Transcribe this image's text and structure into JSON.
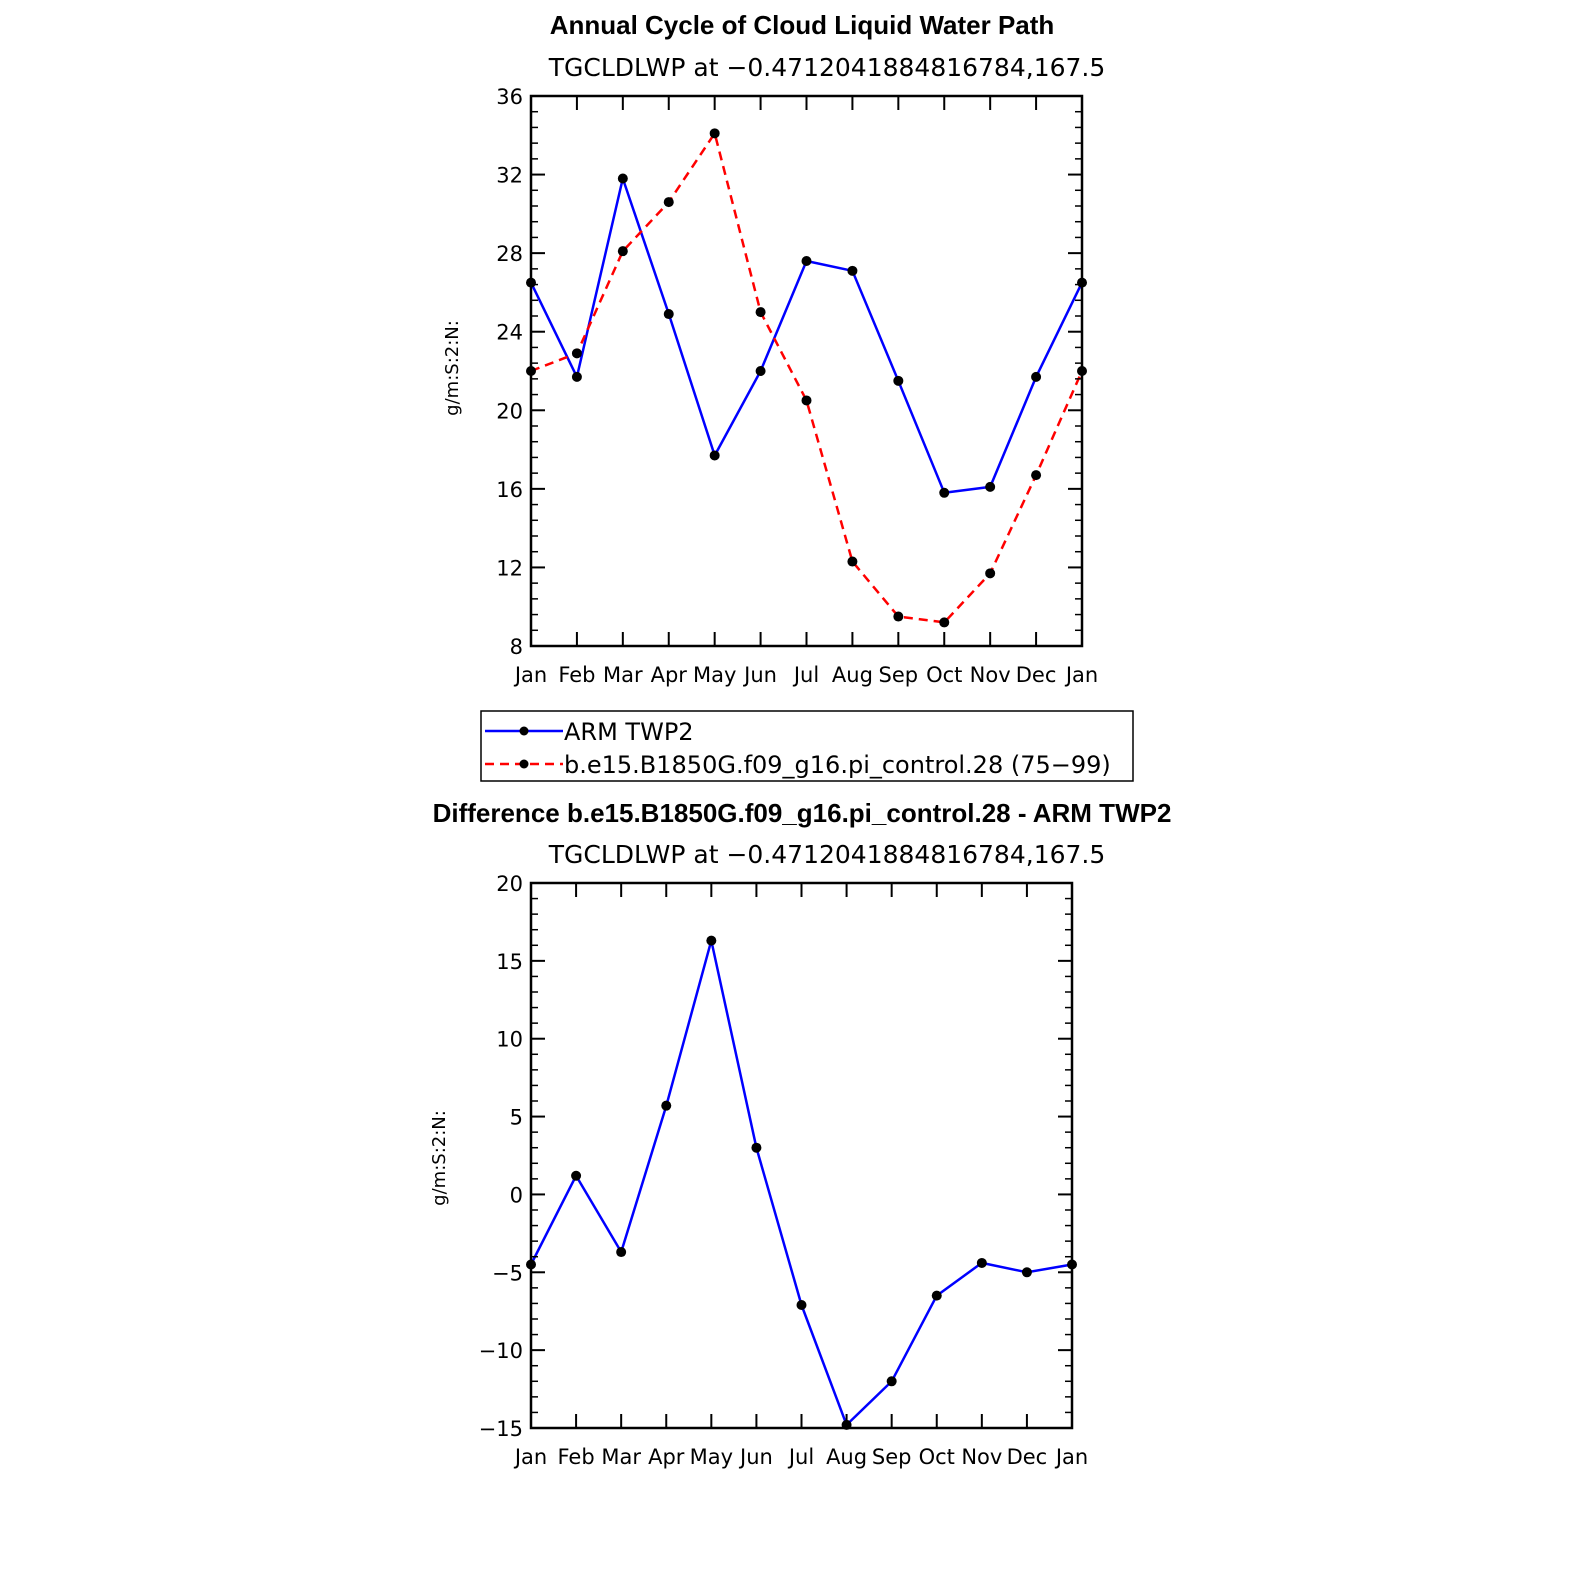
{
  "colors": {
    "series_a": "#0000ff",
    "series_b": "#ff0000",
    "marker": "#000000",
    "axis": "#000000"
  },
  "chart_data": [
    {
      "type": "line",
      "title": "Annual Cycle of Cloud Liquid Water Path",
      "subtitle": "TGCLDLWP at −0.4712041884816784,167.5",
      "xlabel": "",
      "ylabel": "g/m:S:2:N:",
      "categories": [
        "Jan",
        "Feb",
        "Mar",
        "Apr",
        "May",
        "Jun",
        "Jul",
        "Aug",
        "Sep",
        "Oct",
        "Nov",
        "Dec",
        "Jan"
      ],
      "ylim": [
        8,
        36
      ],
      "yticks": [
        "8",
        "12",
        "16",
        "20",
        "24",
        "28",
        "32",
        "36"
      ],
      "ytick_values": [
        8,
        12,
        16,
        20,
        24,
        28,
        32,
        36
      ],
      "series": [
        {
          "name": "ARM TWP2",
          "style": "solid",
          "color": "#0000ff",
          "values": [
            26.5,
            21.7,
            31.8,
            24.9,
            17.7,
            22.0,
            27.6,
            27.1,
            21.5,
            15.8,
            16.1,
            21.7,
            26.5
          ]
        },
        {
          "name": "b.e15.B1850G.f09_g16.pi_control.28 (75−99)",
          "style": "dashed",
          "color": "#ff0000",
          "values": [
            22.0,
            22.9,
            28.1,
            30.6,
            34.1,
            25.0,
            20.5,
            12.3,
            9.5,
            9.2,
            11.7,
            16.7,
            22.0
          ]
        }
      ],
      "legend": {
        "placement": "below-plot",
        "entries": [
          "ARM TWP2",
          "b.e15.B1850G.f09_g16.pi_control.28 (75−99)"
        ]
      }
    },
    {
      "type": "line",
      "title": "Difference b.e15.B1850G.f09_g16.pi_control.28 - ARM TWP2",
      "subtitle": "TGCLDLWP at −0.4712041884816784,167.5",
      "xlabel": "",
      "ylabel": "g/m:S:2:N:",
      "categories": [
        "Jan",
        "Feb",
        "Mar",
        "Apr",
        "May",
        "Jun",
        "Jul",
        "Aug",
        "Sep",
        "Oct",
        "Nov",
        "Dec",
        "Jan"
      ],
      "ylim": [
        -15,
        20
      ],
      "yticks": [
        "−15",
        "−10",
        "−5",
        "0",
        "5",
        "10",
        "15",
        "20"
      ],
      "ytick_values": [
        -15,
        -10,
        -5,
        0,
        5,
        10,
        15,
        20
      ],
      "series": [
        {
          "name": "Difference",
          "style": "solid",
          "color": "#0000ff",
          "values": [
            -4.5,
            1.2,
            -3.7,
            5.7,
            16.3,
            3.0,
            -7.1,
            -14.8,
            -12.0,
            -6.5,
            -4.4,
            -5.0,
            -4.5
          ]
        }
      ]
    }
  ]
}
